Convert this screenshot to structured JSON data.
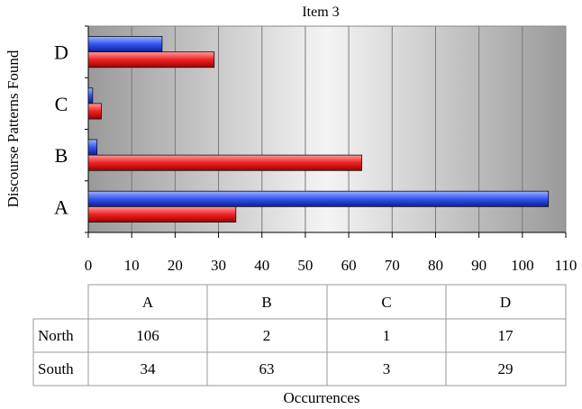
{
  "chart_data": {
    "type": "bar",
    "orientation": "horizontal",
    "title": "Item 3",
    "xlabel": "Occurrences",
    "ylabel": "Discourse Patterns Found",
    "categories": [
      "A",
      "B",
      "C",
      "D"
    ],
    "xlim": [
      0,
      110
    ],
    "xticks": [
      0,
      10,
      20,
      30,
      40,
      50,
      60,
      70,
      80,
      90,
      100,
      110
    ],
    "grid": true,
    "series": [
      {
        "name": "North",
        "values": [
          106,
          2,
          1,
          17
        ],
        "color": "#3355ee"
      },
      {
        "name": "South",
        "values": [
          34,
          63,
          3,
          29
        ],
        "color": "#ee2222"
      }
    ],
    "data_table": {
      "columns": [
        "A",
        "B",
        "C",
        "D"
      ],
      "rows": [
        {
          "label": "North",
          "values": [
            "106",
            "2",
            "1",
            "17"
          ]
        },
        {
          "label": "South",
          "values": [
            "34",
            "63",
            "3",
            "29"
          ]
        }
      ]
    }
  }
}
